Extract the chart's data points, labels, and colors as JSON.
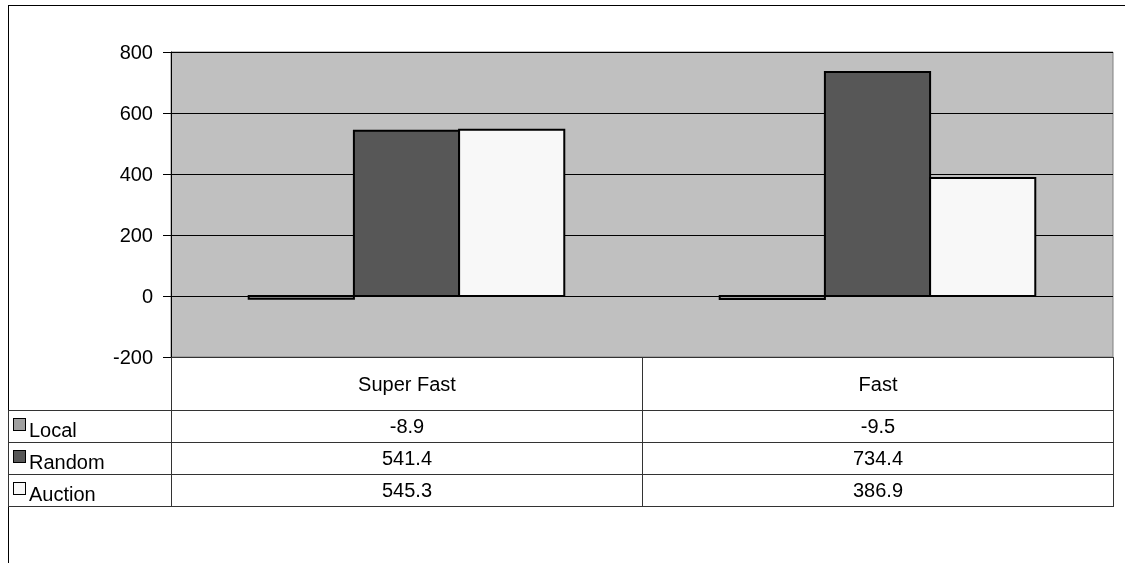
{
  "chart_data": {
    "type": "bar",
    "categories": [
      "Super Fast",
      "Fast"
    ],
    "series": [
      {
        "name": "Local",
        "color": "#a0a0a0",
        "values": [
          -8.9,
          -9.5
        ]
      },
      {
        "name": "Random",
        "color": "#575757",
        "values": [
          541.4,
          734.4
        ]
      },
      {
        "name": "Auction",
        "color": "#f8f8f8",
        "values": [
          545.3,
          386.9
        ]
      }
    ],
    "ylim": [
      -200,
      800
    ],
    "yticks": [
      -200,
      0,
      200,
      400,
      600,
      800
    ],
    "grid": "y",
    "legend": "bottom left",
    "data_labels": true
  }
}
